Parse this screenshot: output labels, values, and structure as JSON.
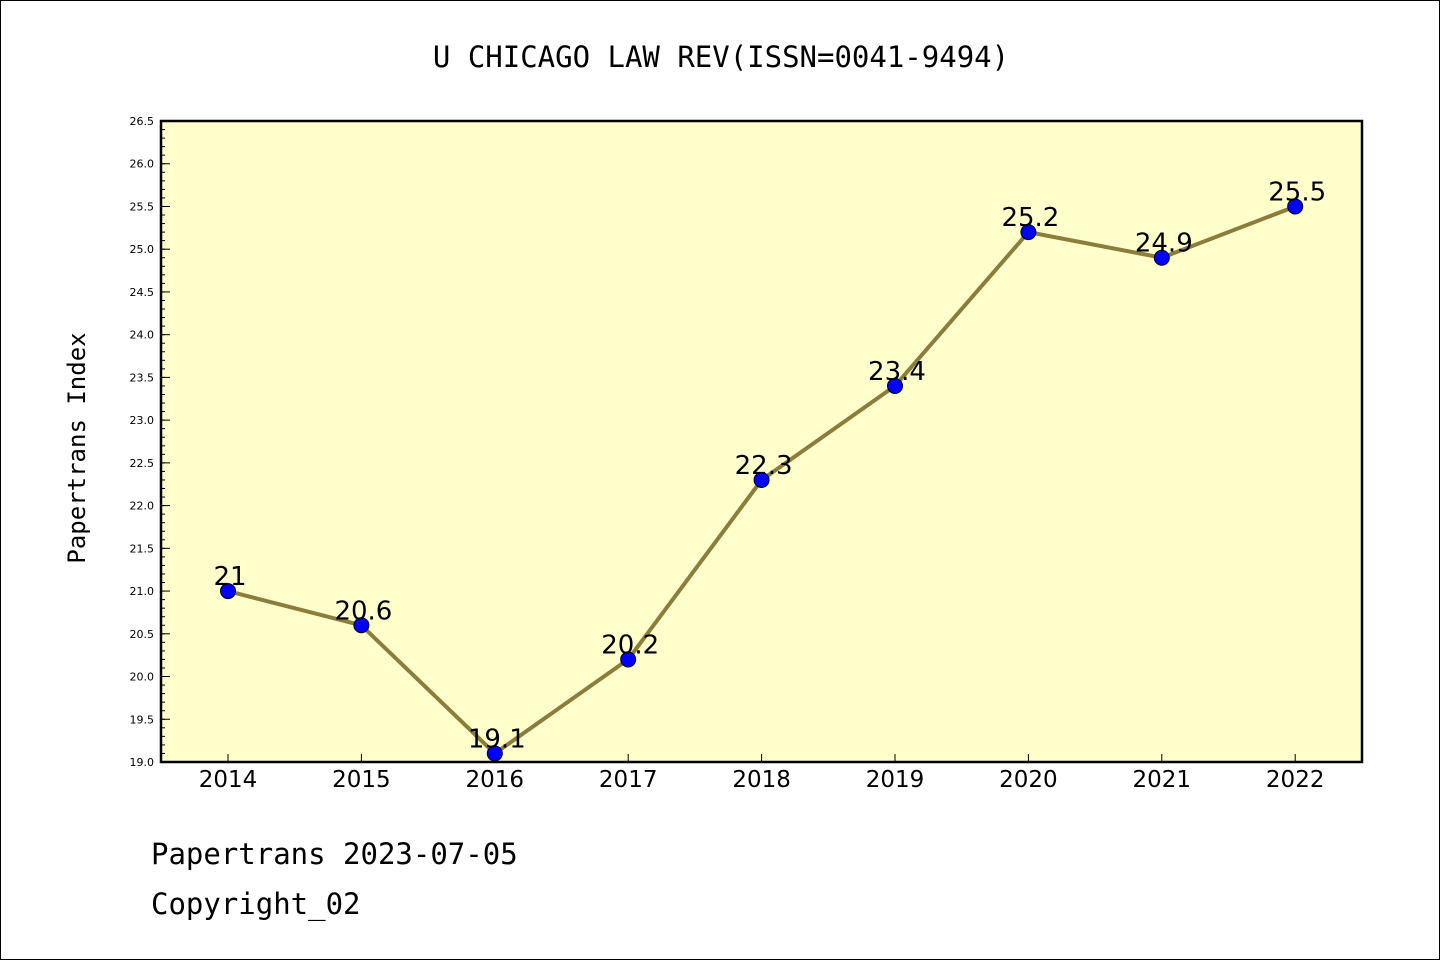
{
  "chart_data": {
    "type": "line",
    "title": "U CHICAGO LAW REV(ISSN=0041-9494)",
    "xlabel": "",
    "ylabel": "Papertrans Index",
    "x": [
      "2014",
      "2015",
      "2016",
      "2017",
      "2018",
      "2019",
      "2020",
      "2021",
      "2022"
    ],
    "series": [
      {
        "values": [
          21.0,
          20.6,
          19.1,
          20.2,
          22.3,
          23.4,
          25.2,
          24.9,
          25.5
        ]
      }
    ],
    "data_labels": [
      "21",
      "20.6",
      "19.1",
      "20.2",
      "22.3",
      "23.4",
      "25.2",
      "24.9",
      "25.5"
    ],
    "ylim": [
      19.0,
      26.5
    ],
    "yticks": [
      "19.0",
      "19.5",
      "20.0",
      "20.5",
      "21.0",
      "21.5",
      "22.0",
      "22.5",
      "23.0",
      "23.5",
      "24.0",
      "24.5",
      "25.0",
      "25.5",
      "26.0",
      "26.5"
    ],
    "grid": false,
    "colors": {
      "line": "#8b7d3a",
      "marker": "#0000ff",
      "plot_bg": "#ffffcc"
    }
  },
  "footer": {
    "date_line": "Papertrans 2023-07-05",
    "copyright": "Copyright_02"
  }
}
